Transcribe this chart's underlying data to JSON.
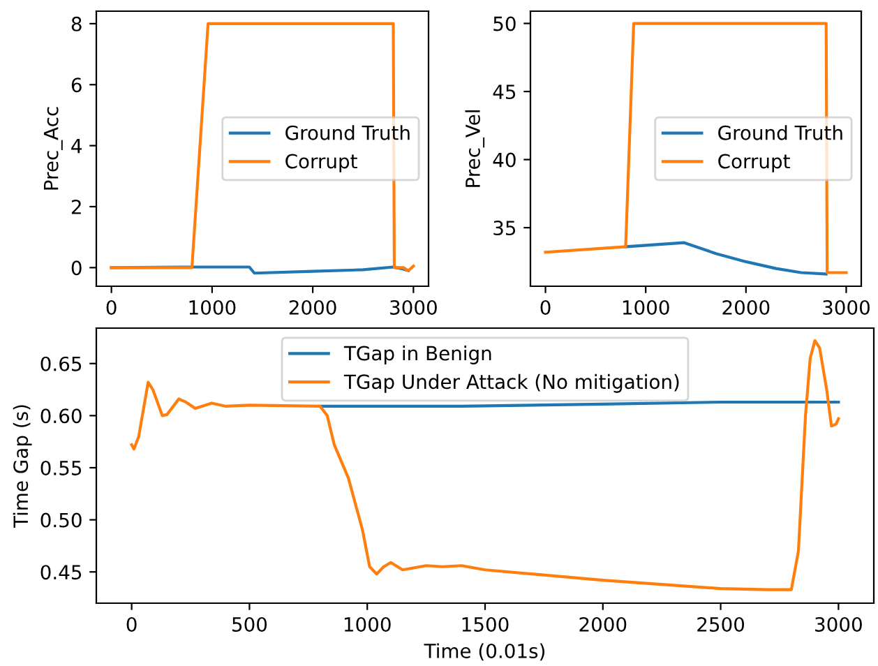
{
  "chart_data": [
    {
      "type": "line",
      "ylabel": "Prec_Acc",
      "legend": "center right",
      "grid": false,
      "xlim": [
        -150,
        3150
      ],
      "xticks": [
        0,
        1000,
        2000,
        3000
      ],
      "ylim": [
        -0.61,
        8.41
      ],
      "yticks": [
        0,
        2,
        4,
        6,
        8
      ],
      "series": [
        {
          "name": "Ground Truth",
          "color": "#1f77b4",
          "x": [
            0,
            800,
            1370,
            1420,
            2000,
            2500,
            2800,
            2900,
            2950
          ],
          "values": [
            0,
            0.02,
            0.02,
            -0.18,
            -0.12,
            -0.07,
            0.02,
            -0.05,
            -0.1
          ]
        },
        {
          "name": "Corrupt",
          "color": "#ff7f0e",
          "x": [
            0,
            800,
            960,
            2800,
            2810,
            2900,
            2950,
            3000
          ],
          "values": [
            0,
            0,
            8,
            8,
            0,
            0,
            -0.1,
            0.05
          ]
        }
      ]
    },
    {
      "type": "line",
      "ylabel": "Prec_Vel",
      "legend": "center right",
      "grid": false,
      "xlim": [
        -150,
        3150
      ],
      "xticks": [
        0,
        1000,
        2000,
        3000
      ],
      "ylim": [
        30.7,
        50.9
      ],
      "yticks": [
        35,
        40,
        45,
        50
      ],
      "series": [
        {
          "name": "Ground Truth",
          "color": "#1f77b4",
          "x": [
            800,
            1380,
            1700,
            2000,
            2300,
            2550,
            2800
          ],
          "values": [
            33.6,
            33.9,
            33.1,
            32.5,
            32.0,
            31.7,
            31.6
          ]
        },
        {
          "name": "Corrupt",
          "color": "#ff7f0e",
          "x": [
            0,
            800,
            880,
            2800,
            2810,
            3000
          ],
          "values": [
            33.2,
            33.6,
            50,
            50,
            31.7,
            31.7
          ]
        }
      ]
    },
    {
      "type": "line",
      "xlabel": "Time (0.01s)",
      "ylabel": "Time Gap (s)",
      "legend": "top",
      "grid": false,
      "xlim": [
        -150,
        3150
      ],
      "xticks": [
        0,
        500,
        1000,
        1500,
        2000,
        2500,
        3000
      ],
      "ylim": [
        0.42,
        0.684
      ],
      "yticks": [
        {
          "value": 0.45,
          "label": "0.45"
        },
        {
          "value": 0.5,
          "label": "0.50"
        },
        {
          "value": 0.55,
          "label": "0.55"
        },
        {
          "value": 0.6,
          "label": "0.60"
        },
        {
          "value": 0.65,
          "label": "0.65"
        }
      ],
      "series": [
        {
          "name": "TGap in Benign",
          "color": "#1f77b4",
          "x": [
            800,
            1400,
            2000,
            2500,
            3000
          ],
          "values": [
            0.609,
            0.609,
            0.611,
            0.613,
            0.613
          ]
        },
        {
          "name": "TGap Under Attack (No mitigation)",
          "color": "#ff7f0e",
          "x": [
            0,
            10,
            30,
            70,
            90,
            130,
            150,
            200,
            230,
            270,
            340,
            400,
            500,
            800,
            830,
            860,
            920,
            980,
            1010,
            1040,
            1070,
            1100,
            1150,
            1250,
            1320,
            1400,
            1500,
            2000,
            2500,
            2700,
            2800,
            2830,
            2860,
            2880,
            2900,
            2920,
            2950,
            2970,
            2990,
            3000
          ],
          "values": [
            0.572,
            0.568,
            0.58,
            0.632,
            0.625,
            0.6,
            0.601,
            0.616,
            0.613,
            0.607,
            0.612,
            0.609,
            0.61,
            0.609,
            0.6,
            0.572,
            0.54,
            0.49,
            0.455,
            0.448,
            0.455,
            0.459,
            0.452,
            0.456,
            0.455,
            0.456,
            0.452,
            0.442,
            0.434,
            0.433,
            0.433,
            0.47,
            0.6,
            0.655,
            0.672,
            0.665,
            0.625,
            0.59,
            0.592,
            0.597
          ]
        }
      ]
    }
  ]
}
